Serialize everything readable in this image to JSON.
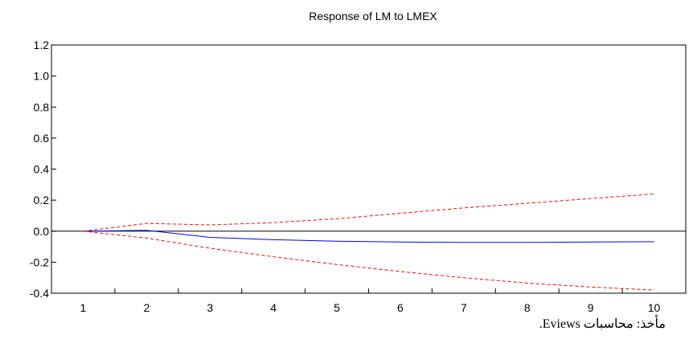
{
  "chart_data": {
    "type": "line",
    "title": "Response of LM to LMEX",
    "xlabel": "",
    "ylabel": "",
    "x": [
      1,
      2,
      3,
      4,
      5,
      6,
      7,
      8,
      9,
      10
    ],
    "x_tick_labels": [
      "1",
      "2",
      "3",
      "4",
      "5",
      "6",
      "7",
      "8",
      "9",
      "10"
    ],
    "ylim": [
      -0.4,
      1.2
    ],
    "y_ticks": [
      -0.4,
      -0.2,
      0.0,
      0.2,
      0.4,
      0.6,
      0.8,
      1.0,
      1.2
    ],
    "y_tick_labels": [
      "-0.4",
      "-0.2",
      "0.0",
      "0.2",
      "0.4",
      "0.6",
      "0.8",
      "1.0",
      "1.2"
    ],
    "grid": false,
    "zero_line": true,
    "series": [
      {
        "role": "response",
        "color": "#0000ff",
        "style": "solid",
        "values": [
          0.0,
          0.005,
          -0.04,
          -0.055,
          -0.065,
          -0.07,
          -0.072,
          -0.072,
          -0.07,
          -0.068
        ]
      },
      {
        "role": "upper_band",
        "color": "#ff0000",
        "style": "dashed",
        "values": [
          0.0,
          0.05,
          0.04,
          0.055,
          0.08,
          0.115,
          0.15,
          0.18,
          0.21,
          0.24
        ]
      },
      {
        "role": "lower_band",
        "color": "#ff0000",
        "style": "dashed",
        "values": [
          0.0,
          -0.045,
          -0.11,
          -0.165,
          -0.215,
          -0.26,
          -0.3,
          -0.335,
          -0.36,
          -0.38
        ]
      }
    ]
  },
  "source_note": "مأخذ: محاسبات Eviews."
}
